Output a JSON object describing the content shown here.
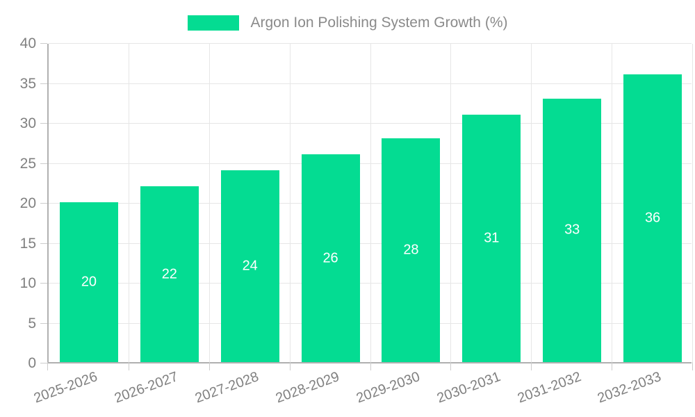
{
  "chart_data": {
    "type": "bar",
    "title": "Argon Ion Polishing System Growth (%)",
    "legend": {
      "label": "Argon Ion Polishing System Growth (%)",
      "position": "top"
    },
    "categories": [
      "2025-2026",
      "2026-2027",
      "2027-2028",
      "2028-2029",
      "2029-2030",
      "2030-2031",
      "2031-2032",
      "2032-2033"
    ],
    "values": [
      20,
      22,
      24,
      26,
      28,
      31,
      33,
      36
    ],
    "value_labels_shown_inside_bars": true,
    "xlabel": "",
    "ylabel": "",
    "ylim": [
      0,
      40
    ],
    "yticks": [
      0,
      5,
      10,
      15,
      20,
      25,
      30,
      35,
      40
    ],
    "grid": true,
    "x_label_rotation_deg": -20,
    "colors": {
      "bar": "#04dc92",
      "value_label": "#ffffff",
      "grid": "#e6e6e6",
      "axis": "#b0b0b0",
      "tick": "#cccccc",
      "tick_label": "#808080",
      "legend_text": "#8a8a8a",
      "background": "#ffffff"
    }
  }
}
